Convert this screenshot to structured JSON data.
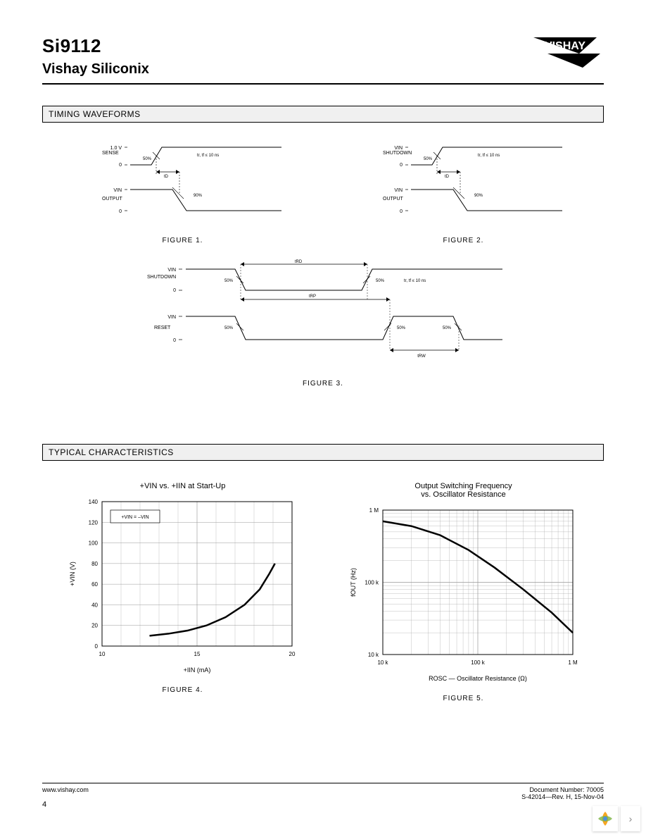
{
  "header": {
    "part_number": "Si9112",
    "company": "Vishay Siliconix",
    "logo_text": "VISHAY"
  },
  "sections": {
    "timing_title": "TIMING WAVEFORMS",
    "typical_title": "TYPICAL CHARACTERISTICS"
  },
  "timing_figures": {
    "fig1": {
      "caption": "FIGURE 1.",
      "signals": {
        "top_label": "SENSE",
        "top_high": "1.0 V",
        "top_pct": "50%",
        "top_zero": "0",
        "timing_note": "tr, tf ≤ 10 ns",
        "bottom_label": "OUTPUT",
        "bottom_high": "VIN",
        "bottom_pct": "90%",
        "bottom_zero": "0",
        "delay": "tD"
      }
    },
    "fig2": {
      "caption": "FIGURE 2.",
      "signals": {
        "top_label": "SHUTDOWN",
        "top_high": "VIN",
        "top_pct": "50%",
        "top_zero": "0",
        "timing_note": "tr, tf ≤ 10 ns",
        "bottom_label": "OUTPUT",
        "bottom_high": "VIN",
        "bottom_pct": "90%",
        "bottom_zero": "0",
        "delay": "tD"
      }
    },
    "fig3": {
      "caption": "FIGURE 3.",
      "signals": {
        "top_label": "SHUTDOWN",
        "top_high": "VIN",
        "top_pct1": "50%",
        "top_pct2": "50%",
        "top_zero": "0",
        "timing_note": "tr, tf ≤ 10 ns",
        "period_top": "tRD",
        "period_mid": "tRP",
        "bottom_label": "RESET",
        "bottom_high": "VIN",
        "bottom_pct1": "50%",
        "bottom_pct2": "50%",
        "bottom_pct3": "50%",
        "bottom_zero": "0",
        "period_bot": "tRW"
      }
    }
  },
  "charts": {
    "fig4": {
      "caption": "FIGURE 4.",
      "title": "+VIN vs. +IIN at Start-Up",
      "xlabel": "+IIN (mA)",
      "ylabel": "+VIN (V)",
      "xlim": [
        10,
        20
      ],
      "ylim": [
        0,
        140
      ],
      "xticks": [
        10,
        15,
        20
      ],
      "yticks": [
        0,
        20,
        40,
        60,
        80,
        100,
        120,
        140
      ],
      "xtick_labels": [
        "10",
        "15",
        "20"
      ],
      "ytick_labels": [
        "0",
        "20",
        "40",
        "60",
        "80",
        "100",
        "120",
        "140"
      ],
      "scale": "linear",
      "legend": "+VIN = –VIN",
      "line_color": "#000000",
      "line_width": 2.5,
      "grid_color": "#999999",
      "background_color": "#ffffff",
      "data": [
        {
          "x": 12.5,
          "y": 10
        },
        {
          "x": 13.5,
          "y": 12
        },
        {
          "x": 14.5,
          "y": 15
        },
        {
          "x": 15.5,
          "y": 20
        },
        {
          "x": 16.5,
          "y": 28
        },
        {
          "x": 17.5,
          "y": 40
        },
        {
          "x": 18.3,
          "y": 55
        },
        {
          "x": 18.8,
          "y": 70
        },
        {
          "x": 19.1,
          "y": 80
        }
      ],
      "label_fontsize": 9,
      "tick_fontsize": 8
    },
    "fig5": {
      "caption": "FIGURE 5.",
      "title": "Output Switching Frequency\nvs. Oscillator Resistance",
      "xlabel": "ROSC — Oscillator Resistance (Ω)",
      "ylabel": "fOUT (Hz)",
      "xlim": [
        10000,
        1000000
      ],
      "ylim": [
        10000,
        1000000
      ],
      "xticks": [
        10000,
        100000,
        1000000
      ],
      "yticks": [
        10000,
        100000,
        1000000
      ],
      "xtick_labels": [
        "10 k",
        "100 k",
        "1 M"
      ],
      "ytick_labels": [
        "10 k",
        "100 k",
        "1 M"
      ],
      "scale": "log",
      "line_color": "#000000",
      "line_width": 2.5,
      "grid_color": "#999999",
      "background_color": "#ffffff",
      "data": [
        {
          "x": 10000,
          "y": 700000
        },
        {
          "x": 20000,
          "y": 600000
        },
        {
          "x": 40000,
          "y": 450000
        },
        {
          "x": 80000,
          "y": 280000
        },
        {
          "x": 150000,
          "y": 160000
        },
        {
          "x": 300000,
          "y": 80000
        },
        {
          "x": 600000,
          "y": 38000
        },
        {
          "x": 1000000,
          "y": 20000
        }
      ],
      "label_fontsize": 9,
      "tick_fontsize": 8
    }
  },
  "footer": {
    "url": "www.vishay.com",
    "doc_number": "Document Number: 70005",
    "revision": "S-42014—Rev. H, 15-Nov-04",
    "page": "4"
  }
}
